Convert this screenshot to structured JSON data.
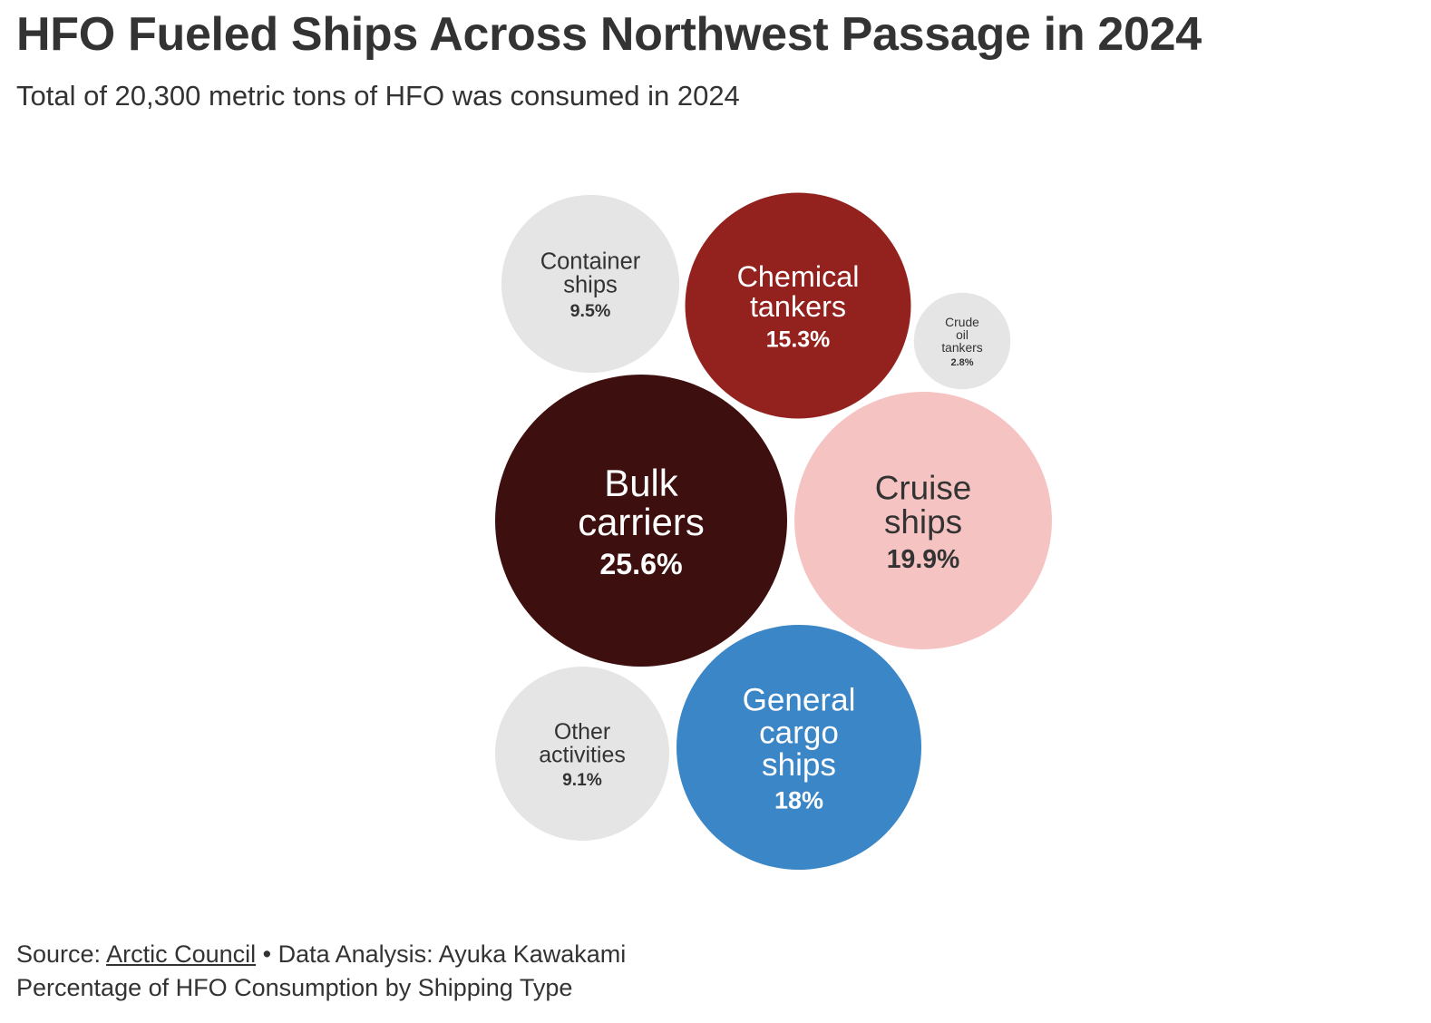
{
  "header": {
    "title": "HFO Fueled Ships Across Northwest Passage in 2024",
    "subtitle": "Total of 20,300 metric tons of HFO was consumed in 2024"
  },
  "footer": {
    "source_prefix": "Source: ",
    "source_link": "Arctic Council",
    "separator": " • ",
    "analysis": "Data Analysis: Ayuka Kawakami",
    "note": "Percentage of HFO Consumption by Shipping Type"
  },
  "chart_data": {
    "type": "bubble",
    "title": "HFO Fueled Ships Across Northwest Passage in 2024",
    "subtitle": "Total of 20,300 metric tons of HFO was consumed in 2024",
    "unit": "percent of HFO consumption",
    "series": [
      {
        "name": "Bulk carriers",
        "label_lines": [
          "Bulk",
          "carriers"
        ],
        "value": 25.6,
        "value_label": "25.6%",
        "color": "#3d0f0e",
        "text_color": "#ffffff"
      },
      {
        "name": "Cruise ships",
        "label_lines": [
          "Cruise",
          "ships"
        ],
        "value": 19.9,
        "value_label": "19.9%",
        "color": "#f5c3c2",
        "text_color": "#333333"
      },
      {
        "name": "General cargo ships",
        "label_lines": [
          "General",
          "cargo",
          "ships"
        ],
        "value": 18,
        "value_label": "18%",
        "color": "#3a86c6",
        "text_color": "#ffffff"
      },
      {
        "name": "Chemical tankers",
        "label_lines": [
          "Chemical",
          "tankers"
        ],
        "value": 15.3,
        "value_label": "15.3%",
        "color": "#93221f",
        "text_color": "#ffffff"
      },
      {
        "name": "Container ships",
        "label_lines": [
          "Container",
          "ships"
        ],
        "value": 9.5,
        "value_label": "9.5%",
        "color": "#e5e5e5",
        "text_color": "#333333"
      },
      {
        "name": "Other activities",
        "label_lines": [
          "Other",
          "activities"
        ],
        "value": 9.1,
        "value_label": "9.1%",
        "color": "#e5e5e5",
        "text_color": "#333333"
      },
      {
        "name": "Crude oil tankers",
        "label_lines": [
          "Crude",
          "oil",
          "tankers"
        ],
        "value": 2.8,
        "value_label": "2.8%",
        "color": "#e5e5e5",
        "text_color": "#333333"
      }
    ]
  }
}
